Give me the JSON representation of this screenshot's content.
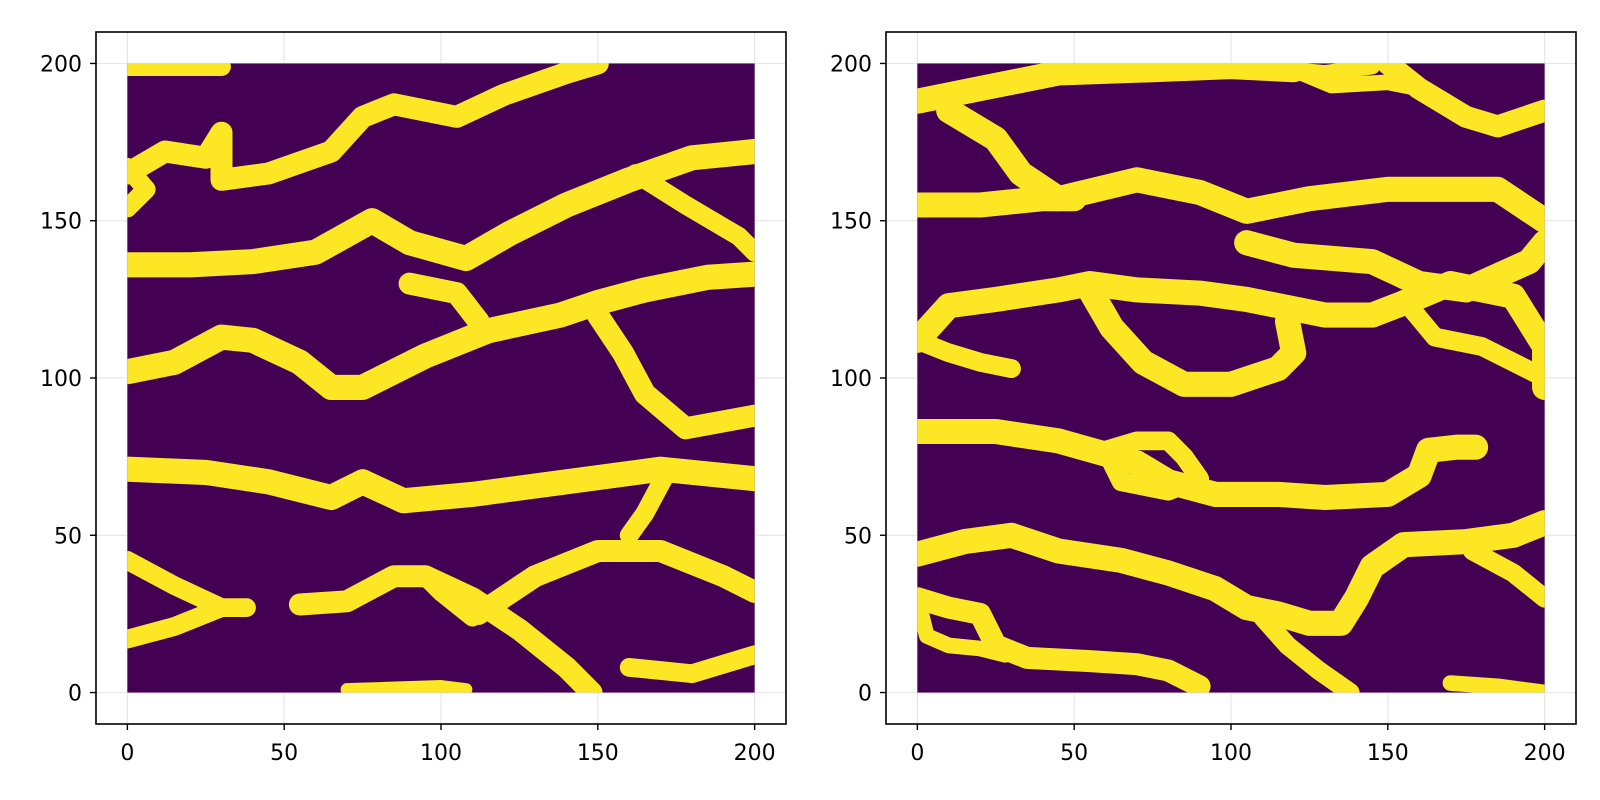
{
  "chart_data": [
    {
      "type": "heatmap",
      "title": "",
      "xlabel": "",
      "ylabel": "",
      "xlim": [
        -10,
        210
      ],
      "ylim": [
        -10,
        210
      ],
      "xticks": [
        0,
        50,
        100,
        150,
        200
      ],
      "yticks": [
        0,
        50,
        100,
        150,
        200
      ],
      "xtick_labels": [
        "0",
        "50",
        "100",
        "150",
        "200"
      ],
      "ytick_labels": [
        "0",
        "50",
        "100",
        "150",
        "200"
      ],
      "grid": true,
      "colormap": {
        "0": "#440154",
        "1": "#fde725"
      },
      "grid_size": [
        200,
        200
      ],
      "description_values": "binary field: 0 = background (dark purple), 1 = channel (yellow)",
      "channels": [
        {
          "points": [
            [
              0,
              199
            ],
            [
              15,
              199
            ],
            [
              30,
              199
            ]
          ],
          "width": 6
        },
        {
          "points": [
            [
              0,
              165
            ],
            [
              12,
              172
            ],
            [
              25,
              170
            ],
            [
              30,
              178
            ],
            [
              30,
              163
            ],
            [
              45,
              165
            ],
            [
              65,
              172
            ],
            [
              75,
              183
            ],
            [
              85,
              187
            ],
            [
              105,
              183
            ],
            [
              120,
              190
            ],
            [
              140,
              197
            ],
            [
              150,
              200
            ]
          ],
          "width": 7
        },
        {
          "points": [
            [
              0,
              167
            ],
            [
              6,
              160
            ],
            [
              0,
              154
            ]
          ],
          "width": 6
        },
        {
          "points": [
            [
              0,
              136
            ],
            [
              20,
              136
            ],
            [
              40,
              137
            ],
            [
              60,
              140
            ],
            [
              78,
              150
            ],
            [
              90,
              143
            ],
            [
              108,
              138
            ],
            [
              122,
              146
            ],
            [
              140,
              155
            ],
            [
              160,
              163
            ],
            [
              180,
              170
            ],
            [
              200,
              172
            ]
          ],
          "width": 8
        },
        {
          "points": [
            [
              162,
              165
            ],
            [
              178,
              155
            ],
            [
              195,
              145
            ],
            [
              200,
              140
            ]
          ],
          "width": 6
        },
        {
          "points": [
            [
              90,
              130
            ],
            [
              105,
              127
            ],
            [
              112,
              118
            ]
          ],
          "width": 7
        },
        {
          "points": [
            [
              0,
              102
            ],
            [
              15,
              105
            ],
            [
              30,
              113
            ],
            [
              40,
              112
            ],
            [
              55,
              105
            ],
            [
              65,
              97
            ],
            [
              75,
              97
            ],
            [
              95,
              107
            ],
            [
              115,
              115
            ],
            [
              138,
              120
            ],
            [
              150,
              124
            ],
            [
              165,
              128
            ],
            [
              185,
              132
            ],
            [
              200,
              133
            ]
          ],
          "width": 8
        },
        {
          "points": [
            [
              150,
              120
            ],
            [
              158,
              108
            ],
            [
              165,
              95
            ],
            [
              178,
              84
            ],
            [
              200,
              88
            ]
          ],
          "width": 7
        },
        {
          "points": [
            [
              0,
              71
            ],
            [
              25,
              70
            ],
            [
              45,
              67
            ],
            [
              65,
              62
            ],
            [
              75,
              67
            ],
            [
              88,
              61
            ],
            [
              110,
              63
            ],
            [
              140,
              67
            ],
            [
              170,
              71
            ],
            [
              200,
              68
            ]
          ],
          "width": 8
        },
        {
          "points": [
            [
              172,
              70
            ],
            [
              165,
              57
            ],
            [
              160,
              50
            ]
          ],
          "width": 6
        },
        {
          "points": [
            [
              0,
              42
            ],
            [
              15,
              34
            ],
            [
              30,
              27
            ],
            [
              38,
              27
            ]
          ],
          "width": 6
        },
        {
          "points": [
            [
              0,
              17
            ],
            [
              15,
              21
            ],
            [
              30,
              27
            ]
          ],
          "width": 6
        },
        {
          "points": [
            [
              55,
              28
            ],
            [
              70,
              29
            ],
            [
              85,
              37
            ],
            [
              95,
              37
            ],
            [
              110,
              30
            ],
            [
              125,
              20
            ],
            [
              140,
              8
            ],
            [
              148,
              0
            ]
          ],
          "width": 7
        },
        {
          "points": [
            [
              112,
              25
            ],
            [
              130,
              37
            ],
            [
              150,
              45
            ],
            [
              170,
              45
            ],
            [
              190,
              37
            ],
            [
              200,
              32
            ]
          ],
          "width": 7
        },
        {
          "points": [
            [
              95,
              37
            ],
            [
              100,
              32
            ],
            [
              110,
              24
            ]
          ],
          "width": 6
        },
        {
          "points": [
            [
              140,
              8
            ],
            [
              125,
              20
            ]
          ],
          "width": 3
        },
        {
          "points": [
            [
              160,
              8
            ],
            [
              180,
              6
            ],
            [
              200,
              12
            ]
          ],
          "width": 6
        },
        {
          "points": [
            [
              70,
              1
            ],
            [
              100,
              2
            ],
            [
              108,
              1
            ]
          ],
          "width": 4
        }
      ]
    },
    {
      "type": "heatmap",
      "title": "",
      "xlabel": "",
      "ylabel": "",
      "xlim": [
        -10,
        210
      ],
      "ylim": [
        -10,
        210
      ],
      "xticks": [
        0,
        50,
        100,
        150,
        200
      ],
      "yticks": [
        0,
        50,
        100,
        150,
        200
      ],
      "xtick_labels": [
        "0",
        "50",
        "100",
        "150",
        "200"
      ],
      "ytick_labels": [
        "0",
        "50",
        "100",
        "150",
        "200"
      ],
      "grid": true,
      "colormap": {
        "0": "#440154",
        "1": "#fde725"
      },
      "grid_size": [
        200,
        200
      ],
      "description_values": "binary field: 0 = background (dark purple), 1 = channel (yellow)",
      "channels": [
        {
          "points": [
            [
              0,
              188
            ],
            [
              20,
              192
            ],
            [
              45,
              197
            ],
            [
              75,
              198
            ],
            [
              100,
              199
            ],
            [
              120,
              198
            ]
          ],
          "width": 8
        },
        {
          "points": [
            [
              118,
              198
            ],
            [
              130,
              197
            ],
            [
              145,
              199
            ]
          ],
          "width": 5
        },
        {
          "points": [
            [
              150,
              200
            ],
            [
              160,
              192
            ],
            [
              175,
              183
            ],
            [
              185,
              180
            ],
            [
              200,
              185
            ]
          ],
          "width": 7
        },
        {
          "points": [
            [
              120,
              198
            ],
            [
              132,
              193
            ],
            [
              150,
              194
            ],
            [
              160,
              192
            ]
          ],
          "width": 5
        },
        {
          "points": [
            [
              10,
              185
            ],
            [
              25,
              176
            ],
            [
              33,
              165
            ],
            [
              45,
              157
            ],
            [
              70,
              163
            ],
            [
              90,
              159
            ],
            [
              105,
              153
            ],
            [
              125,
              157
            ],
            [
              150,
              160
            ],
            [
              185,
              160
            ],
            [
              200,
              150
            ]
          ],
          "width": 8
        },
        {
          "points": [
            [
              0,
              155
            ],
            [
              20,
              155
            ],
            [
              40,
              157
            ],
            [
              50,
              157
            ]
          ],
          "width": 8
        },
        {
          "points": [
            [
              105,
              143
            ],
            [
              120,
              139
            ],
            [
              145,
              137
            ],
            [
              160,
              130
            ],
            [
              175,
              128
            ],
            [
              195,
              137
            ],
            [
              200,
              143
            ]
          ],
          "width": 8
        },
        {
          "points": [
            [
              0,
              112
            ],
            [
              10,
              123
            ],
            [
              25,
              125
            ],
            [
              45,
              128
            ],
            [
              55,
              130
            ],
            [
              70,
              128
            ],
            [
              90,
              127
            ],
            [
              105,
              125
            ],
            [
              130,
              120
            ],
            [
              145,
              120
            ],
            [
              158,
              125
            ],
            [
              170,
              130
            ],
            [
              190,
              126
            ],
            [
              200,
              110
            ],
            [
              200,
              97
            ]
          ],
          "width": 8
        },
        {
          "points": [
            [
              0,
              112
            ],
            [
              10,
              108
            ],
            [
              20,
              105
            ],
            [
              30,
              103
            ]
          ],
          "width": 6
        },
        {
          "points": [
            [
              55,
              128
            ],
            [
              62,
              116
            ],
            [
              72,
              105
            ],
            [
              85,
              98
            ],
            [
              100,
              98
            ],
            [
              115,
              103
            ],
            [
              120,
              108
            ],
            [
              118,
              118
            ]
          ],
          "width": 8
        },
        {
          "points": [
            [
              155,
              125
            ],
            [
              165,
              113
            ],
            [
              180,
              110
            ],
            [
              200,
              100
            ]
          ],
          "width": 6
        },
        {
          "points": [
            [
              0,
              83
            ],
            [
              25,
              83
            ],
            [
              45,
              80
            ],
            [
              70,
              73
            ],
            [
              80,
              67
            ],
            [
              95,
              63
            ],
            [
              115,
              63
            ],
            [
              130,
              62
            ],
            [
              150,
              63
            ],
            [
              160,
              69
            ],
            [
              163,
              77
            ],
            [
              172,
              78
            ],
            [
              178,
              78
            ]
          ],
          "width": 8
        },
        {
          "points": [
            [
              60,
              77
            ],
            [
              70,
              80
            ],
            [
              80,
              80
            ],
            [
              85,
              75
            ],
            [
              90,
              68
            ],
            [
              80,
              64
            ],
            [
              65,
              67
            ],
            [
              60,
              77
            ]
          ],
          "width": 6
        },
        {
          "points": [
            [
              0,
              44
            ],
            [
              15,
              48
            ],
            [
              30,
              50
            ],
            [
              45,
              45
            ],
            [
              65,
              42
            ],
            [
              80,
              38
            ],
            [
              95,
              33
            ],
            [
              105,
              27
            ],
            [
              115,
              25
            ],
            [
              125,
              22
            ],
            [
              135,
              22
            ],
            [
              140,
              30
            ],
            [
              145,
              40
            ],
            [
              155,
              47
            ],
            [
              175,
              48
            ],
            [
              190,
              50
            ],
            [
              200,
              54
            ]
          ],
          "width": 8
        },
        {
          "points": [
            [
              0,
              30
            ],
            [
              10,
              27
            ],
            [
              20,
              25
            ],
            [
              25,
              15
            ],
            [
              35,
              11
            ],
            [
              55,
              10
            ],
            [
              70,
              9
            ],
            [
              80,
              7
            ],
            [
              90,
              2
            ]
          ],
          "width": 7
        },
        {
          "points": [
            [
              0,
              30
            ],
            [
              3,
              18
            ],
            [
              10,
              15
            ],
            [
              20,
              14
            ],
            [
              28,
              12
            ]
          ],
          "width": 5
        },
        {
          "points": [
            [
              110,
              24
            ],
            [
              118,
              15
            ],
            [
              128,
              7
            ],
            [
              138,
              0
            ]
          ],
          "width": 6
        },
        {
          "points": [
            [
              177,
              45
            ],
            [
              190,
              38
            ],
            [
              200,
              30
            ]
          ],
          "width": 6
        },
        {
          "points": [
            [
              170,
              3
            ],
            [
              185,
              2
            ],
            [
              200,
              0
            ]
          ],
          "width": 5
        }
      ]
    }
  ]
}
